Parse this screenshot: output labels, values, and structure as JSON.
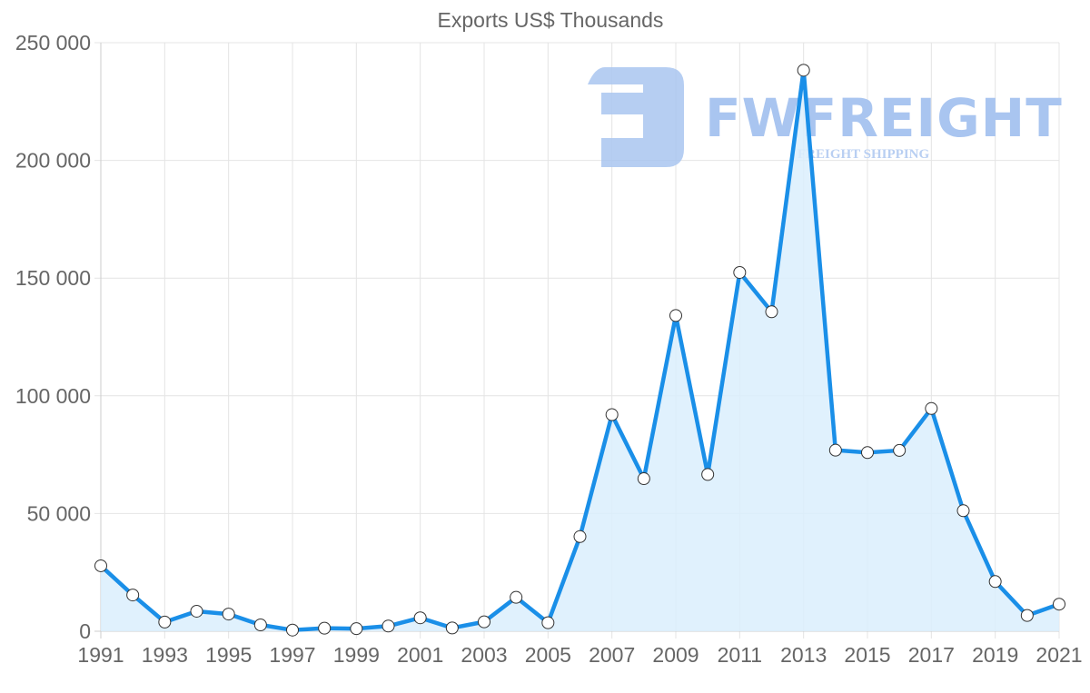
{
  "chart_data": {
    "type": "line",
    "title": "Exports US$ Thousands",
    "xlabel": "",
    "ylabel": "",
    "ylim": [
      0,
      250000
    ],
    "grid": true,
    "legend": "none",
    "filled_area": true,
    "x": [
      1991,
      1992,
      1993,
      1994,
      1995,
      1996,
      1997,
      1998,
      1999,
      2000,
      2001,
      2002,
      2003,
      2004,
      2005,
      2006,
      2007,
      2008,
      2009,
      2010,
      2011,
      2012,
      2013,
      2014,
      2015,
      2016,
      2017,
      2018,
      2019,
      2020,
      2021
    ],
    "series": [
      {
        "name": "Exports US$ Thousands",
        "values": [
          27800,
          15400,
          3900,
          8500,
          7300,
          2700,
          500,
          1300,
          1100,
          2200,
          5700,
          1400,
          4000,
          14400,
          3600,
          40200,
          92000,
          64800,
          134100,
          66600,
          152400,
          135700,
          238300,
          76900,
          75900,
          76800,
          94600,
          51200,
          21100,
          6700,
          11500
        ]
      }
    ],
    "y_ticks": [
      {
        "value": 0,
        "label": "0"
      },
      {
        "value": 50000,
        "label": "50 000"
      },
      {
        "value": 100000,
        "label": "100 000"
      },
      {
        "value": 150000,
        "label": "150 000"
      },
      {
        "value": 200000,
        "label": "200 000"
      },
      {
        "value": 250000,
        "label": "250 000"
      }
    ],
    "x_tick_labels": [
      "1991",
      "1993",
      "1995",
      "1997",
      "1999",
      "2001",
      "2003",
      "2005",
      "2007",
      "2009",
      "2011",
      "2013",
      "2015",
      "2017",
      "2019",
      "2021"
    ]
  },
  "colors": {
    "line": "#1a8fe8",
    "fill": "#dbeefd",
    "grid": "#e4e4e4",
    "axis": "#cccccc",
    "text": "#666666",
    "point_fill": "#ffffff",
    "point_stroke": "#333333",
    "watermark": "#a9c5f0"
  },
  "watermark": {
    "brand": "FWFREIGHT",
    "tagline": "FREIGHT SHIPPING"
  }
}
